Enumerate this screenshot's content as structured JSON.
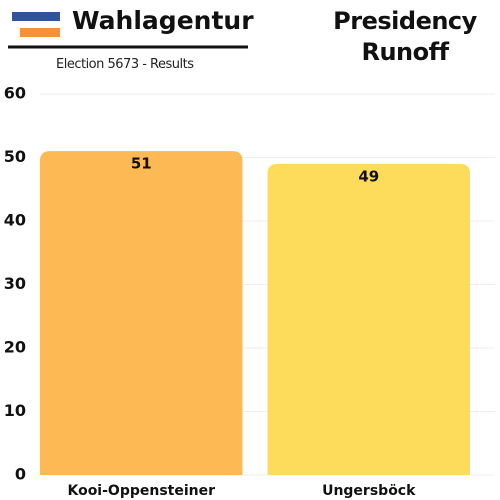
{
  "header": {
    "brand": "Wahlagentur",
    "subtitle": "Election 5673 - Results"
  },
  "chart_data": {
    "type": "bar",
    "title": "Presidency Runoff",
    "categories": [
      "Kooi-Oppensteiner",
      "Ungersböck"
    ],
    "values": [
      51,
      49
    ],
    "colors": [
      "#fdb954",
      "#fddc5c"
    ],
    "ylim": [
      0,
      60
    ],
    "yticks": [
      0,
      10,
      20,
      30,
      40,
      50,
      60
    ],
    "grid": true
  }
}
